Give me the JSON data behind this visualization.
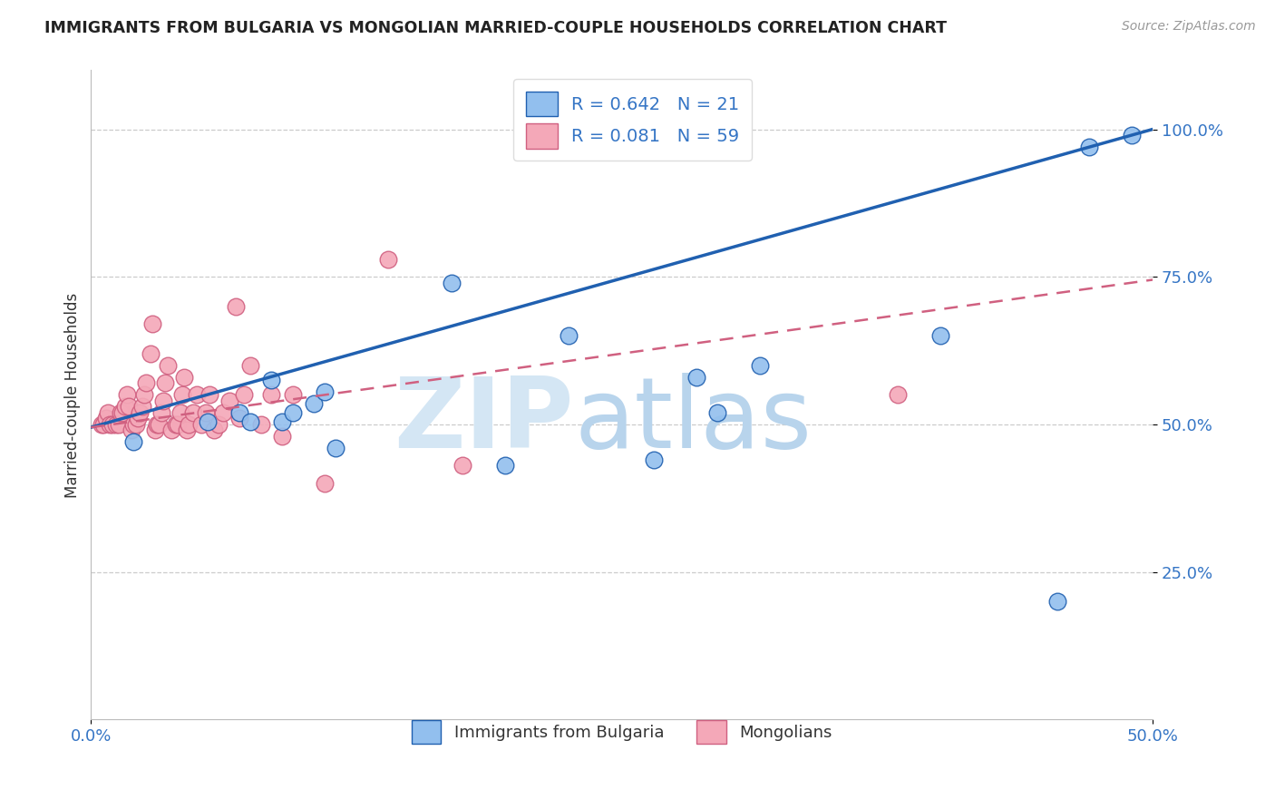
{
  "title": "IMMIGRANTS FROM BULGARIA VS MONGOLIAN MARRIED-COUPLE HOUSEHOLDS CORRELATION CHART",
  "source_text": "Source: ZipAtlas.com",
  "ylabel": "Married-couple Households",
  "xlim": [
    0.0,
    0.5
  ],
  "ylim": [
    0.0,
    1.1
  ],
  "x_tick_values": [
    0.0,
    0.5
  ],
  "x_tick_labels": [
    "0.0%",
    "50.0%"
  ],
  "y_tick_values": [
    0.25,
    0.5,
    0.75,
    1.0
  ],
  "y_tick_labels": [
    "25.0%",
    "50.0%",
    "75.0%",
    "100.0%"
  ],
  "legend_r1": "R = 0.642",
  "legend_n1": "N = 21",
  "legend_r2": "R = 0.081",
  "legend_n2": "N = 59",
  "color_blue": "#92BFEE",
  "color_pink": "#F4A8B8",
  "line_color_blue": "#2060B0",
  "line_color_pink": "#D06080",
  "blue_line_x": [
    0.0,
    0.5
  ],
  "blue_line_y": [
    0.495,
    1.0
  ],
  "pink_line_x": [
    0.0,
    0.5
  ],
  "pink_line_y": [
    0.495,
    0.745
  ],
  "blue_scatter_x": [
    0.02,
    0.17,
    0.07,
    0.09,
    0.095,
    0.085,
    0.075,
    0.105,
    0.11,
    0.055,
    0.115,
    0.195,
    0.225,
    0.285,
    0.295,
    0.315,
    0.265,
    0.4,
    0.455,
    0.47,
    0.49
  ],
  "blue_scatter_y": [
    0.47,
    0.74,
    0.52,
    0.505,
    0.52,
    0.575,
    0.505,
    0.535,
    0.555,
    0.505,
    0.46,
    0.43,
    0.65,
    0.58,
    0.52,
    0.6,
    0.44,
    0.65,
    0.2,
    0.97,
    0.99
  ],
  "pink_scatter_x": [
    0.005,
    0.006,
    0.007,
    0.008,
    0.009,
    0.01,
    0.012,
    0.013,
    0.014,
    0.015,
    0.016,
    0.017,
    0.018,
    0.019,
    0.02,
    0.021,
    0.022,
    0.023,
    0.024,
    0.025,
    0.026,
    0.028,
    0.029,
    0.03,
    0.031,
    0.032,
    0.033,
    0.034,
    0.035,
    0.036,
    0.038,
    0.04,
    0.041,
    0.042,
    0.043,
    0.044,
    0.045,
    0.046,
    0.048,
    0.05,
    0.052,
    0.054,
    0.056,
    0.058,
    0.06,
    0.062,
    0.065,
    0.068,
    0.07,
    0.072,
    0.075,
    0.08,
    0.085,
    0.09,
    0.095,
    0.11,
    0.14,
    0.175,
    0.38
  ],
  "pink_scatter_y": [
    0.5,
    0.5,
    0.51,
    0.52,
    0.5,
    0.5,
    0.5,
    0.5,
    0.52,
    0.52,
    0.53,
    0.55,
    0.53,
    0.49,
    0.5,
    0.5,
    0.51,
    0.52,
    0.53,
    0.55,
    0.57,
    0.62,
    0.67,
    0.49,
    0.5,
    0.5,
    0.52,
    0.54,
    0.57,
    0.6,
    0.49,
    0.5,
    0.5,
    0.52,
    0.55,
    0.58,
    0.49,
    0.5,
    0.52,
    0.55,
    0.5,
    0.52,
    0.55,
    0.49,
    0.5,
    0.52,
    0.54,
    0.7,
    0.51,
    0.55,
    0.6,
    0.5,
    0.55,
    0.48,
    0.55,
    0.4,
    0.78,
    0.43,
    0.55
  ],
  "background_color": "#ffffff",
  "grid_color": "#cccccc",
  "watermark_zip_color": "#d4e6f4",
  "watermark_atlas_color": "#b8d4ec"
}
